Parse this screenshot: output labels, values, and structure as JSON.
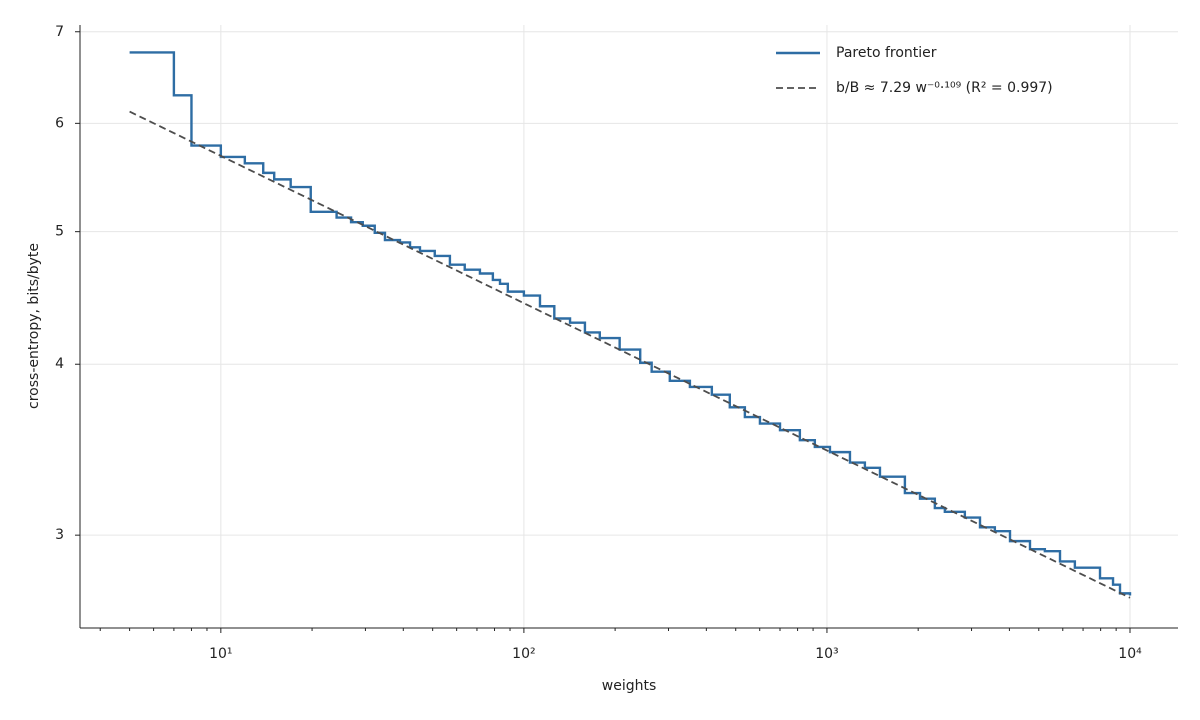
{
  "chart_data": {
    "type": "line",
    "xlabel": "weights",
    "ylabel": "cross-entropy, bits/byte",
    "xscale": "log",
    "yscale": "log",
    "xlim": [
      3.43,
      14400
    ],
    "ylim": [
      2.566,
      7.08
    ],
    "xticks": [
      {
        "value": 10,
        "label": "10¹"
      },
      {
        "value": 100,
        "label": "10²"
      },
      {
        "value": 1000,
        "label": "10³"
      },
      {
        "value": 10000,
        "label": "10⁴"
      }
    ],
    "xminorticks": [
      4,
      5,
      6,
      7,
      8,
      9,
      20,
      30,
      40,
      50,
      60,
      70,
      80,
      90,
      200,
      300,
      400,
      500,
      600,
      700,
      800,
      900,
      2000,
      3000,
      4000,
      5000,
      6000,
      7000,
      8000,
      9000
    ],
    "yticks": [
      3,
      4,
      5,
      6,
      7
    ],
    "grid": true,
    "legend": "upper right",
    "series": [
      {
        "name": "Pareto frontier",
        "color": "#2e6da4",
        "style": "steps-post",
        "x": [
          5,
          7,
          8,
          10,
          12,
          13.8,
          15,
          17,
          19.8,
          24.1,
          26.9,
          29.4,
          32.2,
          34.8,
          39.0,
          42.1,
          45.4,
          50.8,
          57.0,
          63.8,
          71.6,
          79.0,
          83.4,
          88.5,
          100,
          113,
          126,
          142,
          159,
          178,
          207,
          242,
          264,
          303,
          353,
          417,
          478,
          536,
          601,
          700,
          814,
          912,
          1023,
          1191,
          1334,
          1496,
          1808,
          2028,
          2270,
          2449,
          2851,
          3199,
          3581,
          4018,
          4677,
          5236,
          5875,
          6577,
          7962,
          8790,
          9268,
          10000
        ],
        "values": [
          6.76,
          6.29,
          5.78,
          5.67,
          5.61,
          5.52,
          5.46,
          5.39,
          5.17,
          5.12,
          5.08,
          5.05,
          4.99,
          4.93,
          4.91,
          4.87,
          4.84,
          4.8,
          4.73,
          4.69,
          4.66,
          4.61,
          4.58,
          4.52,
          4.49,
          4.41,
          4.32,
          4.29,
          4.22,
          4.18,
          4.1,
          4.01,
          3.95,
          3.89,
          3.85,
          3.8,
          3.72,
          3.66,
          3.62,
          3.58,
          3.52,
          3.48,
          3.45,
          3.39,
          3.36,
          3.31,
          3.22,
          3.19,
          3.14,
          3.12,
          3.09,
          3.04,
          3.02,
          2.97,
          2.93,
          2.92,
          2.87,
          2.84,
          2.79,
          2.76,
          2.72,
          2.71
        ]
      },
      {
        "name": "b/B ≈ 7.29 w⁻⁰·¹⁰⁹  (R² = 0.997)",
        "color": "#4d4d4d",
        "style": "dashed",
        "x": [
          5,
          10000
        ],
        "values": [
          6.12,
          2.7
        ]
      }
    ]
  }
}
